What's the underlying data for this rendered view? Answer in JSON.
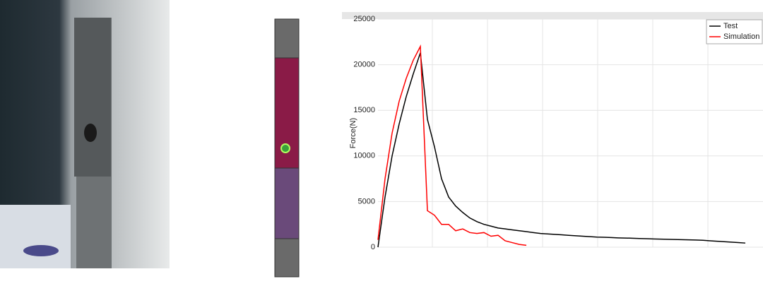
{
  "chart_data": {
    "type": "line",
    "ylabel": "Force(N)",
    "categories": [
      null,
      null,
      null,
      null,
      null,
      null,
      null,
      null,
      null,
      null,
      null,
      null,
      null,
      null,
      null,
      null,
      null,
      null,
      null,
      null,
      null,
      null,
      null,
      null,
      null,
      null,
      null,
      null,
      null,
      null,
      null,
      null,
      null,
      null,
      null,
      null,
      null,
      null,
      null,
      null,
      null,
      null,
      null,
      null,
      null,
      null,
      null,
      null,
      null,
      null,
      null,
      null,
      null,
      null
    ],
    "series": [
      {
        "name": "Test",
        "color": "#000000",
        "values": [
          null,
          0,
          5500,
          10000,
          13500,
          16500,
          19000,
          21300,
          14000,
          11000,
          7500,
          5500,
          4500,
          3800,
          3200,
          2800,
          2500,
          2300,
          2100,
          2000,
          1900,
          1800,
          1700,
          1600,
          1500,
          1450,
          1400,
          1350,
          1300,
          1250,
          1200,
          1150,
          1100,
          1080,
          1050,
          1020,
          1000,
          980,
          950,
          930,
          900,
          880,
          860,
          840,
          820,
          800,
          780,
          750,
          700,
          650,
          600,
          550,
          500,
          450
        ]
      },
      {
        "name": "Simulation",
        "color": "#ff0000",
        "values": [
          null,
          800,
          7500,
          12500,
          16000,
          18500,
          20500,
          22000,
          4000,
          3500,
          2500,
          2500,
          1800,
          2000,
          1600,
          1500,
          1600,
          1200,
          1300,
          700,
          500,
          300,
          200,
          null,
          null,
          null,
          null,
          null,
          null,
          null,
          null,
          null,
          null,
          null,
          null,
          null,
          null,
          null,
          null,
          null,
          null,
          null,
          null,
          null,
          null,
          null,
          null,
          null,
          null,
          null,
          null,
          null,
          null,
          null
        ]
      }
    ],
    "ylim": [
      0,
      25000
    ],
    "yticks": [
      0,
      5000,
      10000,
      15000,
      20000,
      25000
    ],
    "grid": true,
    "legend": "top-right"
  }
}
